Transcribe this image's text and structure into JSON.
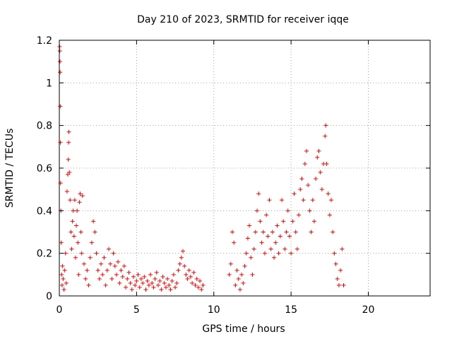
{
  "chart_data": {
    "type": "scatter",
    "title": "Day 210 of 2023, SRMTID for receiver iqqe",
    "xlabel": "GPS time / hours",
    "ylabel": "SRMTID / TECUs",
    "xlim": [
      0,
      24
    ],
    "ylim": [
      0,
      1.2
    ],
    "xticks": [
      0,
      5,
      10,
      15,
      20
    ],
    "yticks": [
      0,
      0.2,
      0.4,
      0.6,
      0.8,
      1,
      1.2
    ],
    "xtick_labels": [
      "0",
      "5",
      "10",
      "15",
      "20"
    ],
    "ytick_labels": [
      "0",
      "0.2",
      "0.4",
      "0.6",
      "0.8",
      "1",
      "1.2"
    ],
    "grid": true,
    "marker": "+",
    "color": "#ff0000",
    "series": [
      {
        "name": "SRMTID",
        "points": [
          [
            0.02,
            1.17
          ],
          [
            0.03,
            1.15
          ],
          [
            0.04,
            1.1
          ],
          [
            0.05,
            1.05
          ],
          [
            0.06,
            0.89
          ],
          [
            0.07,
            0.72
          ],
          [
            0.08,
            0.53
          ],
          [
            0.1,
            0.4
          ],
          [
            0.12,
            0.25
          ],
          [
            0.15,
            0.1
          ],
          [
            0.18,
            0.05
          ],
          [
            0.2,
            0.14
          ],
          [
            0.25,
            0.08
          ],
          [
            0.3,
            0.03
          ],
          [
            0.35,
            0.12
          ],
          [
            0.4,
            0.2
          ],
          [
            0.45,
            0.06
          ],
          [
            0.5,
            0.49
          ],
          [
            0.55,
            0.57
          ],
          [
            0.58,
            0.64
          ],
          [
            0.6,
            0.72
          ],
          [
            0.62,
            0.77
          ],
          [
            0.65,
            0.58
          ],
          [
            0.7,
            0.45
          ],
          [
            0.75,
            0.3
          ],
          [
            0.8,
            0.22
          ],
          [
            0.85,
            0.35
          ],
          [
            0.9,
            0.4
          ],
          [
            0.95,
            0.28
          ],
          [
            1.0,
            0.45
          ],
          [
            1.05,
            0.18
          ],
          [
            1.1,
            0.33
          ],
          [
            1.15,
            0.4
          ],
          [
            1.2,
            0.25
          ],
          [
            1.25,
            0.1
          ],
          [
            1.3,
            0.44
          ],
          [
            1.35,
            0.48
          ],
          [
            1.4,
            0.3
          ],
          [
            1.45,
            0.2
          ],
          [
            1.5,
            0.47
          ],
          [
            1.6,
            0.15
          ],
          [
            1.7,
            0.08
          ],
          [
            1.8,
            0.12
          ],
          [
            1.9,
            0.05
          ],
          [
            2.0,
            0.18
          ],
          [
            2.1,
            0.25
          ],
          [
            2.2,
            0.35
          ],
          [
            2.3,
            0.3
          ],
          [
            2.4,
            0.2
          ],
          [
            2.5,
            0.12
          ],
          [
            2.6,
            0.08
          ],
          [
            2.7,
            0.15
          ],
          [
            2.8,
            0.1
          ],
          [
            2.9,
            0.18
          ],
          [
            3.0,
            0.05
          ],
          [
            3.1,
            0.12
          ],
          [
            3.2,
            0.22
          ],
          [
            3.3,
            0.15
          ],
          [
            3.4,
            0.08
          ],
          [
            3.5,
            0.2
          ],
          [
            3.6,
            0.14
          ],
          [
            3.7,
            0.1
          ],
          [
            3.8,
            0.16
          ],
          [
            3.9,
            0.06
          ],
          [
            4.0,
            0.12
          ],
          [
            4.1,
            0.09
          ],
          [
            4.2,
            0.14
          ],
          [
            4.3,
            0.04
          ],
          [
            4.4,
            0.08
          ],
          [
            4.5,
            0.11
          ],
          [
            4.6,
            0.06
          ],
          [
            4.7,
            0.03
          ],
          [
            4.8,
            0.09
          ],
          [
            4.9,
            0.05
          ],
          [
            5.0,
            0.07
          ],
          [
            5.1,
            0.1
          ],
          [
            5.2,
            0.04
          ],
          [
            5.3,
            0.08
          ],
          [
            5.4,
            0.06
          ],
          [
            5.5,
            0.09
          ],
          [
            5.6,
            0.03
          ],
          [
            5.7,
            0.07
          ],
          [
            5.8,
            0.05
          ],
          [
            5.9,
            0.1
          ],
          [
            6.0,
            0.06
          ],
          [
            6.1,
            0.04
          ],
          [
            6.2,
            0.08
          ],
          [
            6.3,
            0.11
          ],
          [
            6.4,
            0.05
          ],
          [
            6.5,
            0.07
          ],
          [
            6.6,
            0.03
          ],
          [
            6.7,
            0.09
          ],
          [
            6.8,
            0.06
          ],
          [
            6.9,
            0.04
          ],
          [
            7.0,
            0.08
          ],
          [
            7.1,
            0.05
          ],
          [
            7.2,
            0.03
          ],
          [
            7.3,
            0.07
          ],
          [
            7.4,
            0.1
          ],
          [
            7.5,
            0.04
          ],
          [
            7.6,
            0.06
          ],
          [
            7.7,
            0.12
          ],
          [
            7.8,
            0.15
          ],
          [
            7.9,
            0.18
          ],
          [
            8.0,
            0.21
          ],
          [
            8.1,
            0.14
          ],
          [
            8.2,
            0.1
          ],
          [
            8.3,
            0.08
          ],
          [
            8.4,
            0.12
          ],
          [
            8.5,
            0.09
          ],
          [
            8.6,
            0.06
          ],
          [
            8.7,
            0.11
          ],
          [
            8.8,
            0.05
          ],
          [
            8.9,
            0.08
          ],
          [
            9.0,
            0.04
          ],
          [
            9.1,
            0.07
          ],
          [
            9.2,
            0.03
          ],
          [
            9.3,
            0.05
          ],
          [
            11.0,
            0.1
          ],
          [
            11.1,
            0.15
          ],
          [
            11.2,
            0.3
          ],
          [
            11.3,
            0.25
          ],
          [
            11.4,
            0.05
          ],
          [
            11.5,
            0.12
          ],
          [
            11.6,
            0.08
          ],
          [
            11.7,
            0.03
          ],
          [
            11.8,
            0.1
          ],
          [
            11.9,
            0.06
          ],
          [
            12.0,
            0.14
          ],
          [
            12.1,
            0.2
          ],
          [
            12.2,
            0.27
          ],
          [
            12.3,
            0.33
          ],
          [
            12.4,
            0.18
          ],
          [
            12.5,
            0.1
          ],
          [
            12.6,
            0.22
          ],
          [
            12.7,
            0.3
          ],
          [
            12.8,
            0.4
          ],
          [
            12.9,
            0.48
          ],
          [
            13.0,
            0.35
          ],
          [
            13.1,
            0.25
          ],
          [
            13.2,
            0.3
          ],
          [
            13.3,
            0.2
          ],
          [
            13.4,
            0.38
          ],
          [
            13.5,
            0.28
          ],
          [
            13.6,
            0.45
          ],
          [
            13.7,
            0.22
          ],
          [
            13.8,
            0.3
          ],
          [
            13.9,
            0.18
          ],
          [
            14.0,
            0.25
          ],
          [
            14.1,
            0.33
          ],
          [
            14.2,
            0.2
          ],
          [
            14.3,
            0.28
          ],
          [
            14.4,
            0.45
          ],
          [
            14.5,
            0.35
          ],
          [
            14.6,
            0.22
          ],
          [
            14.7,
            0.3
          ],
          [
            14.8,
            0.4
          ],
          [
            14.9,
            0.28
          ],
          [
            15.0,
            0.2
          ],
          [
            15.1,
            0.35
          ],
          [
            15.2,
            0.48
          ],
          [
            15.3,
            0.3
          ],
          [
            15.4,
            0.22
          ],
          [
            15.5,
            0.38
          ],
          [
            15.6,
            0.5
          ],
          [
            15.7,
            0.55
          ],
          [
            15.8,
            0.45
          ],
          [
            15.9,
            0.62
          ],
          [
            16.0,
            0.68
          ],
          [
            16.1,
            0.52
          ],
          [
            16.2,
            0.4
          ],
          [
            16.3,
            0.3
          ],
          [
            16.4,
            0.45
          ],
          [
            16.5,
            0.35
          ],
          [
            16.6,
            0.55
          ],
          [
            16.7,
            0.65
          ],
          [
            16.8,
            0.68
          ],
          [
            16.9,
            0.58
          ],
          [
            17.0,
            0.5
          ],
          [
            17.1,
            0.62
          ],
          [
            17.2,
            0.75
          ],
          [
            17.25,
            0.8
          ],
          [
            17.3,
            0.62
          ],
          [
            17.4,
            0.48
          ],
          [
            17.5,
            0.38
          ],
          [
            17.6,
            0.45
          ],
          [
            17.7,
            0.3
          ],
          [
            17.8,
            0.2
          ],
          [
            17.9,
            0.15
          ],
          [
            18.0,
            0.08
          ],
          [
            18.1,
            0.05
          ],
          [
            18.2,
            0.12
          ],
          [
            18.3,
            0.22
          ],
          [
            18.4,
            0.05
          ]
        ]
      }
    ]
  }
}
